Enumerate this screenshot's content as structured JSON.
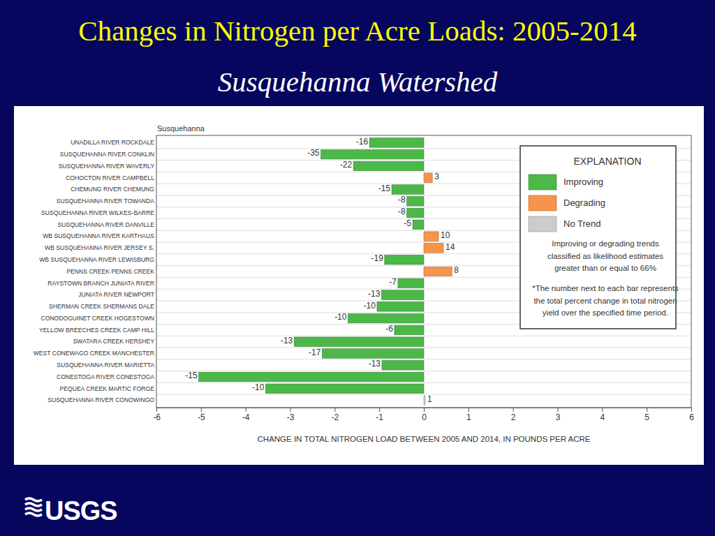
{
  "logo": "USGS",
  "chart_data": {
    "type": "bar",
    "orientation": "horizontal",
    "title": "Changes in Nitrogen per Acre Loads: 2005-2014",
    "subtitle": "Susquehanna Watershed",
    "panel_label": "Susquehanna",
    "x_label": "CHANGE IN TOTAL NITROGEN LOAD BETWEEN 2005 AND 2014, IN POUNDS PER ACRE",
    "categories": [
      "UNADILLA RIVER ROCKDALE",
      "SUSQUEHANNA RIVER CONKLIN",
      "SUSQUEHANNA RIVER WAVERLY",
      "COHOCTON RIVER CAMPBELL",
      "CHEMUNG RIVER CHEMUNG",
      "SUSQUEHANNA RIVER TOWANDA",
      "SUSQUEHANNA RIVER WILKES-BARRE",
      "SUSQUEHANNA RIVER DANVILLE",
      "WB SUSQUEHANNA RIVER KARTHAUS",
      "WB SUSQUEHANNA RIVER JERSEY S.",
      "WB SUSQUEHANNA RIVER  LEWISBURG",
      "PENNS CREEK  PENNS CREEK",
      "RAYSTOWN BRANCH JUNIATA RIVER",
      "JUNIATA RIVER NEWPORT",
      "SHERMAN CREEK SHERMANS DALE",
      "CONODOGUINET CREEK HOGESTOWN",
      "YELLOW BREECHES CREEK CAMP HILL",
      "SWATARA CREEK HERSHEY",
      "WEST CONEWAGO CREEK MANCHESTER",
      "SUSQUEHANNA RIVER MARIETTA",
      "CONESTOGA RIVER CONESTOGA",
      "PEQUEA CREEK MARTIC FORGE",
      "SUSQUEHANNA RIVER CONOWINGO"
    ],
    "values": [
      -1.22,
      -2.31,
      -1.58,
      0.19,
      -0.72,
      -0.38,
      -0.38,
      -0.25,
      0.33,
      0.44,
      -0.88,
      0.63,
      -0.58,
      -0.95,
      -1.05,
      -1.7,
      -0.66,
      -2.91,
      -2.28,
      -0.94,
      -5.05,
      -3.55,
      0.03
    ],
    "colors": [
      "#4cb848",
      "#4cb848",
      "#4cb848",
      "#f7944a",
      "#4cb848",
      "#4cb848",
      "#4cb848",
      "#4cb848",
      "#f7944a",
      "#f7944a",
      "#4cb848",
      "#f7944a",
      "#4cb848",
      "#4cb848",
      "#4cb848",
      "#4cb848",
      "#4cb848",
      "#4cb848",
      "#4cb848",
      "#4cb848",
      "#4cb848",
      "#4cb848",
      "#cccccc"
    ],
    "percent_change": [
      -16,
      -35,
      -22,
      3,
      -15,
      -8,
      -8,
      -5,
      10,
      14,
      -19,
      8,
      -7,
      -13,
      -10,
      -10,
      -6,
      -13,
      -17,
      -13,
      -15,
      -10,
      1
    ],
    "xlim": [
      -6,
      6
    ],
    "xticks": [
      -6,
      -5,
      -4,
      -3,
      -2,
      -1,
      0,
      1,
      2,
      3,
      4,
      5,
      6
    ],
    "grid": true,
    "legend": "upper right",
    "legend_title": "EXPLANATION",
    "legend_items": [
      {
        "name": "Improving",
        "color": "#4cb848"
      },
      {
        "name": "Degrading",
        "color": "#f7944a"
      },
      {
        "name": "No Trend",
        "color": "#cccccc"
      }
    ],
    "legend_notes": [
      [
        "Improving or degrading trends",
        "classified as likelihood estimates",
        "greater than or equal to 66%"
      ],
      [
        "*The number next to each bar represents",
        "the total percent change in total nitrogen",
        "yield over the specified time period."
      ]
    ]
  }
}
